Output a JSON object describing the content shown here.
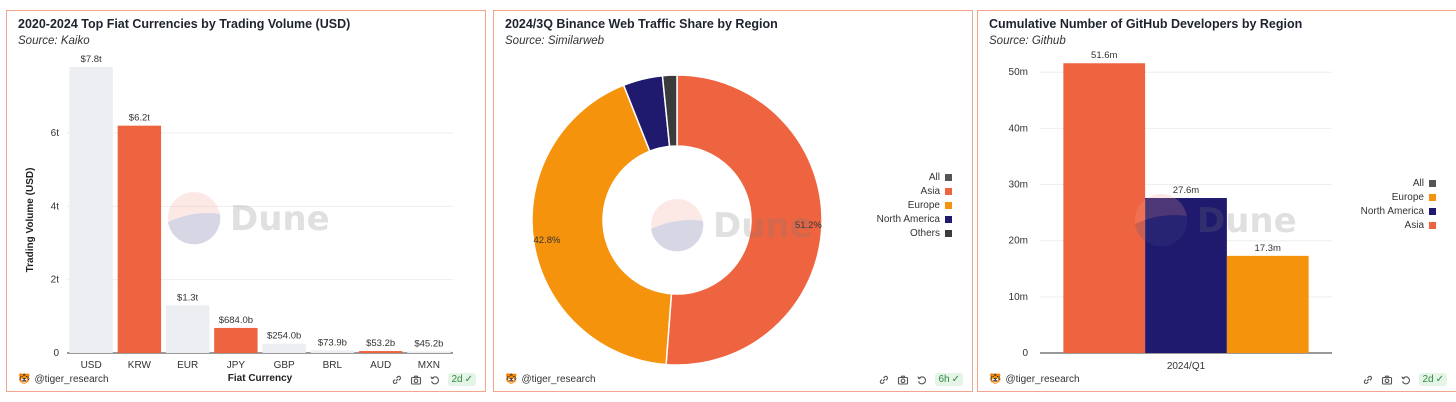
{
  "colors": {
    "orange_red": "#ef6440",
    "light_gray": "#eceef2",
    "orange": "#f5930d",
    "navy": "#1f1a6e",
    "dark_gray": "#3b3b3b",
    "all_gray": "#555555",
    "border": "#f0a58c"
  },
  "watermark": "Dune",
  "panels": [
    {
      "title": "2020-2024 Top Fiat Currencies by Trading Volume (USD)",
      "source": "Source: Kaiko",
      "footer": {
        "handle": "@tiger_research",
        "age": "2d"
      }
    },
    {
      "title": "2024/3Q Binance Web Traffic Share by Region",
      "source": "Source: Similarweb",
      "footer": {
        "handle": "@tiger_research",
        "age": "6h"
      }
    },
    {
      "title": "Cumulative Number of GitHub Developers by Region",
      "source": "Source: Github",
      "footer": {
        "handle": "@tiger_research",
        "age": "2d"
      }
    }
  ],
  "chart_data": [
    {
      "type": "bar",
      "title": "2020-2024 Top Fiat Currencies by Trading Volume (USD)",
      "xlabel": "Fiat Currency",
      "ylabel": "Trading Volume (USD)",
      "ylim": [
        0,
        7.8
      ],
      "yticks": [
        0,
        2,
        4,
        6
      ],
      "ytick_labels": [
        "0",
        "2t",
        "4t",
        "6t"
      ],
      "categories": [
        "USD",
        "KRW",
        "EUR",
        "JPY",
        "GBP",
        "BRL",
        "AUD",
        "MXN"
      ],
      "values": [
        7.8,
        6.2,
        1.3,
        0.684,
        0.254,
        0.0739,
        0.0532,
        0.0452
      ],
      "labels": [
        "$7.8t",
        "$6.2t",
        "$1.3t",
        "$684.0b",
        "$254.0b",
        "$73.9b",
        "$53.2b",
        "$45.2b"
      ],
      "highlight": [
        false,
        true,
        false,
        true,
        false,
        false,
        true,
        false
      ]
    },
    {
      "type": "pie",
      "title": "2024/3Q Binance Web Traffic Share by Region",
      "slices": [
        {
          "name": "Asia",
          "value": 51.2,
          "label": "51.2%",
          "color": "#ef6440"
        },
        {
          "name": "Europe",
          "value": 42.8,
          "label": "42.8%",
          "color": "#f5930d"
        },
        {
          "name": "North America",
          "value": 4.4,
          "label": "",
          "color": "#1f1a6e"
        },
        {
          "name": "Others",
          "value": 1.6,
          "label": "",
          "color": "#3b3b3b"
        }
      ],
      "legend": [
        {
          "name": "All",
          "color": "#555555"
        },
        {
          "name": "Asia",
          "color": "#ef6440"
        },
        {
          "name": "Europe",
          "color": "#f5930d"
        },
        {
          "name": "North America",
          "color": "#1f1a6e"
        },
        {
          "name": "Others",
          "color": "#3b3b3b"
        }
      ]
    },
    {
      "type": "bar",
      "title": "Cumulative Number of GitHub Developers by Region",
      "categories": [
        "2024/Q1"
      ],
      "ylim": [
        0,
        52
      ],
      "yticks": [
        0,
        10,
        20,
        30,
        40,
        50
      ],
      "ytick_labels": [
        "0",
        "10m",
        "20m",
        "30m",
        "40m",
        "50m"
      ],
      "series": [
        {
          "name": "Asia",
          "values": [
            51.6
          ],
          "label": "51.6m",
          "color": "#ef6440"
        },
        {
          "name": "North America",
          "values": [
            27.6
          ],
          "label": "27.6m",
          "color": "#1f1a6e"
        },
        {
          "name": "Europe",
          "values": [
            17.3
          ],
          "label": "17.3m",
          "color": "#f5930d"
        }
      ],
      "legend": [
        {
          "name": "All",
          "color": "#555555"
        },
        {
          "name": "Europe",
          "color": "#f5930d"
        },
        {
          "name": "North America",
          "color": "#1f1a6e"
        },
        {
          "name": "Asia",
          "color": "#ef6440"
        }
      ]
    }
  ]
}
